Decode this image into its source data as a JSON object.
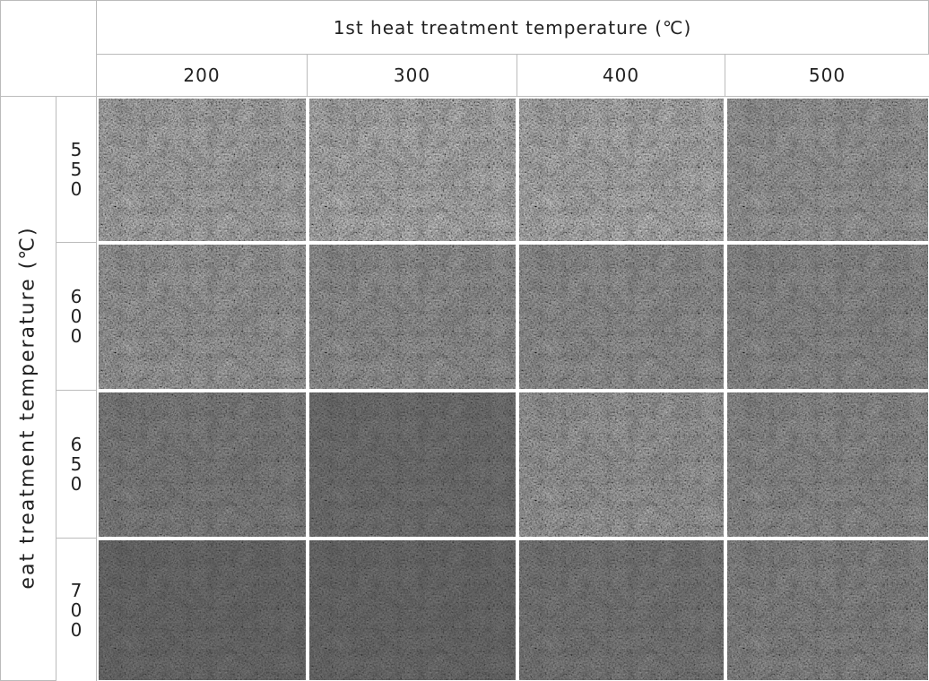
{
  "header": {
    "title": "1st heat treatment temperature (℃)",
    "columns": [
      "200",
      "300",
      "400",
      "500"
    ]
  },
  "side": {
    "title": "eat treatment temperature (℃)",
    "rows": [
      "550",
      "600",
      "650",
      "700"
    ]
  }
}
